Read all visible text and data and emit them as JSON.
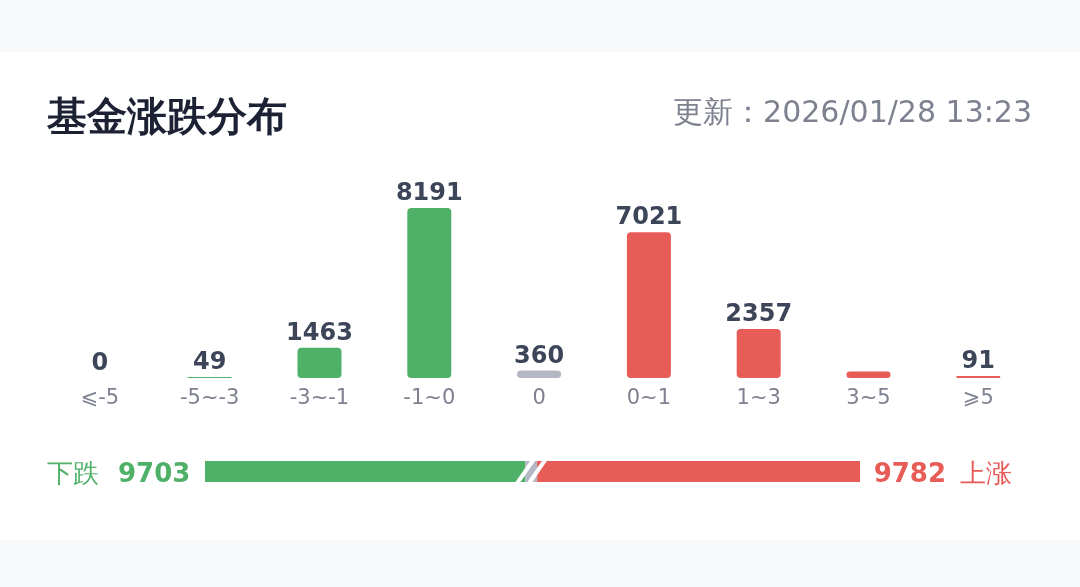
{
  "chart_data": [
    {
      "type": "bar",
      "title": "基金涨跌分布",
      "subtitle": "更新：2026/01/28 13:23",
      "categories": [
        "⩽-5",
        "-5~-3",
        "-3~-1",
        "-1~0",
        "0",
        "0~1",
        "1~3",
        "3~5",
        "⩾5"
      ],
      "values": [
        0,
        49,
        1463,
        8191,
        360,
        7021,
        2357,
        313,
        91
      ],
      "colors": [
        "#4fb168",
        "#4fb168",
        "#4fb168",
        "#4fb168",
        "#b4b8c4",
        "#e85c57",
        "#e85c57",
        "#e85c57",
        "#e85c57"
      ],
      "value_labels": [
        "0",
        "49",
        "1463",
        "8191",
        "360",
        "7021",
        "2357",
        null,
        "91"
      ]
    },
    {
      "type": "bar",
      "orientation": "horizontal",
      "stacked": true,
      "categories": [
        null
      ],
      "series": [
        {
          "name": "下跌",
          "color": "#4fb168",
          "values": [
            9703
          ],
          "value_labels": [
            "9703"
          ]
        },
        {
          "color": "#b4b8c4",
          "values": [
            360
          ]
        },
        {
          "name": "上涨",
          "color": "#e85c57",
          "values": [
            9782
          ],
          "value_labels": [
            "9782"
          ]
        }
      ]
    }
  ]
}
